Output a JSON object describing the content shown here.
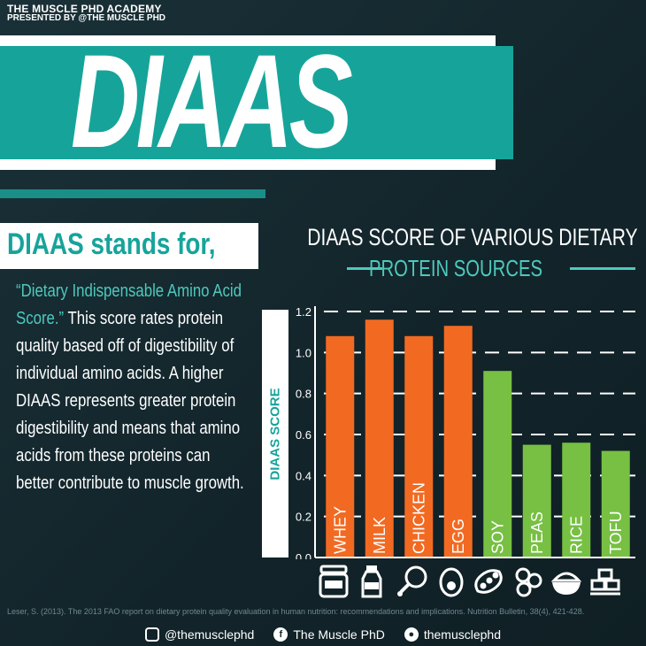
{
  "brand": {
    "line1": "THE MUSCLE PHD ACADEMY",
    "line2": "PRESENTED BY @THE MUSCLE PHD"
  },
  "hero_title": "DIAAS",
  "intro": {
    "heading": "DIAAS stands for,",
    "definition": "“Dietary Indispensable Amino Acid Score.”",
    "body": " This score rates protein quality based off of digestibility of individual amino acids. A higher DIAAS represents greater protein digestibility and means that amino acids from these proteins can better contribute to muscle growth."
  },
  "colors": {
    "teal": "#16a49a",
    "orange": "#f26a22",
    "green": "#77c043",
    "dark": "#15282f"
  },
  "chart_data": {
    "type": "bar",
    "title": "DIAAS SCORE OF VARIOUS DIETARY",
    "subtitle": "PROTEIN SOURCES",
    "ylabel": "DIAAS SCORE",
    "xlabel": "",
    "ylim": [
      0,
      1.2
    ],
    "yticks": [
      "0.0",
      "0.2",
      "0.4",
      "0.6",
      "0.8",
      "1.0",
      "1.2"
    ],
    "grid": true,
    "categories": [
      "WHEY",
      "MILK",
      "CHICKEN",
      "EGG",
      "SOY",
      "PEAS",
      "RICE",
      "TOFU"
    ],
    "values": [
      1.08,
      1.16,
      1.08,
      1.13,
      0.91,
      0.55,
      0.56,
      0.52
    ],
    "bar_colors": [
      "#f26a22",
      "#f26a22",
      "#f26a22",
      "#f26a22",
      "#77c043",
      "#77c043",
      "#77c043",
      "#77c043"
    ]
  },
  "food_icons": [
    "whey-jar-icon",
    "milk-bottle-icon",
    "chicken-leg-icon",
    "egg-icon",
    "soybean-icon",
    "peas-icon",
    "rice-bowl-icon",
    "tofu-icon"
  ],
  "footnote": "Leser, S. (2013). The 2013 FAO report on dietary protein quality evaluation in human nutrition: recommendations and implications. Nutrition Bulletin, 38(4), 421-428.",
  "social": {
    "instagram": "@themusclephd",
    "facebook": "The Muscle PhD",
    "snapchat": "themusclephd"
  }
}
